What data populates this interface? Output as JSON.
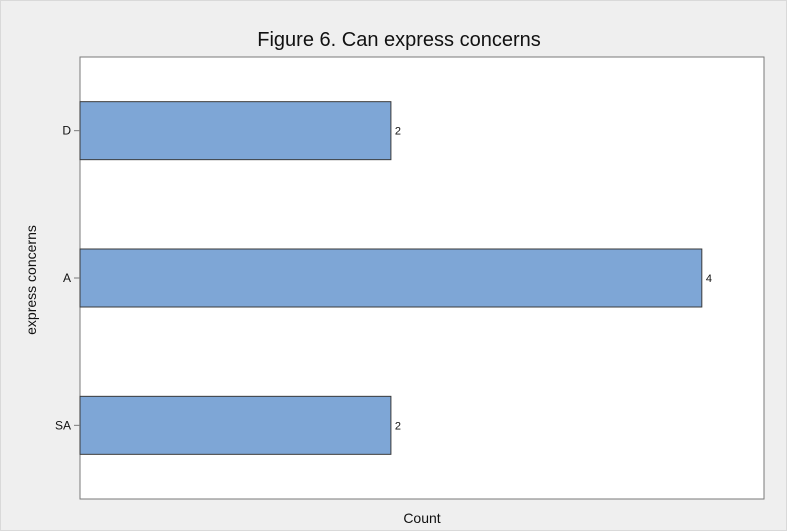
{
  "chart_data": {
    "type": "bar",
    "orientation": "horizontal",
    "title": "Figure 6. Can express concerns",
    "xlabel": "Count",
    "ylabel": "express concerns",
    "categories": [
      "D",
      "A",
      "SA"
    ],
    "values": [
      2,
      4,
      2
    ],
    "data_labels": [
      "2",
      "4",
      "2"
    ],
    "xlim": [
      0,
      4.4
    ],
    "grid": false,
    "legend": "none",
    "colors": {
      "bar_fill": "#7ea6d6",
      "bar_stroke": "#3a3a3a",
      "plot_background": "#ffffff",
      "figure_background": "#efefef"
    }
  }
}
